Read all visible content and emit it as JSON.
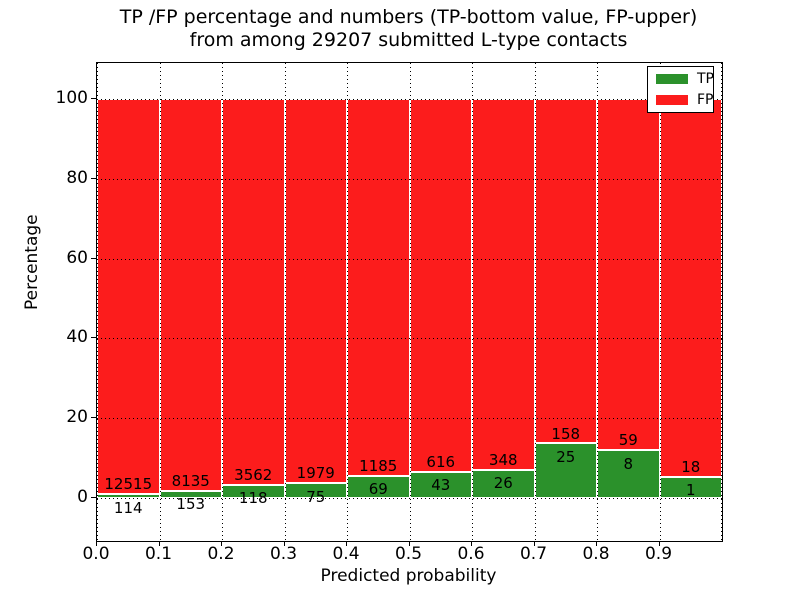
{
  "figure": {
    "title_line1": "TP /FP percentage and numbers (TP-bottom value, FP-upper)",
    "title_line2": "from among 29207 submitted L-type contacts"
  },
  "axes": {
    "xlabel": "Predicted probability",
    "ylabel": "Percentage",
    "xtick_labels": [
      "0.0",
      "0.1",
      "0.2",
      "0.3",
      "0.4",
      "0.5",
      "0.6",
      "0.7",
      "0.8",
      "0.9"
    ],
    "ytick_values": [
      0,
      20,
      40,
      60,
      80,
      100
    ]
  },
  "legend": {
    "items": [
      {
        "name": "TP",
        "color": "#2b912b"
      },
      {
        "name": "FP",
        "color": "#fc1c1c"
      }
    ]
  },
  "chart_data": {
    "type": "bar",
    "stacked": true,
    "percent_normalized": true,
    "title": "TP /FP percentage and numbers (TP-bottom value, FP-upper) from among 29207 submitted L-type contacts",
    "xlabel": "Predicted probability",
    "ylabel": "Percentage",
    "total_contacts": 29207,
    "x_bins": [
      0.0,
      0.1,
      0.2,
      0.3,
      0.4,
      0.5,
      0.6,
      0.7,
      0.8,
      0.9
    ],
    "bin_width": 0.1,
    "series": [
      {
        "name": "TP",
        "color": "#2b912b",
        "counts": [
          114,
          153,
          118,
          75,
          69,
          43,
          26,
          25,
          8,
          1
        ]
      },
      {
        "name": "FP",
        "color": "#fc1c1c",
        "counts": [
          12515,
          8135,
          3562,
          1979,
          1185,
          616,
          348,
          158,
          59,
          18
        ]
      }
    ],
    "xlim": [
      0.0,
      1.0
    ],
    "ylim": [
      -11,
      109
    ],
    "grid": "dotted",
    "legend_position": "upper right"
  }
}
